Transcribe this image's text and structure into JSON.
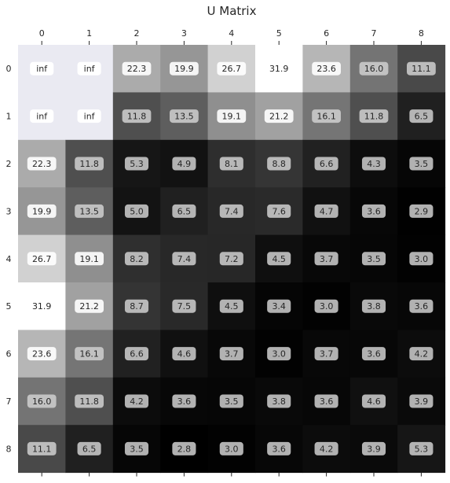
{
  "chart_data": {
    "type": "heatmap",
    "title": "U Matrix",
    "x_tick_labels": [
      "0",
      "1",
      "2",
      "3",
      "4",
      "5",
      "6",
      "7",
      "8"
    ],
    "y_tick_labels": [
      "0",
      "1",
      "2",
      "3",
      "4",
      "5",
      "6",
      "7",
      "8"
    ],
    "x_ticks_position": "top-and-bottom",
    "colormap": "gray",
    "missing_color": "#eaeaf2",
    "color_range": [
      2.8,
      31.9
    ],
    "values": [
      [
        "inf",
        "inf",
        22.3,
        19.9,
        26.7,
        31.9,
        23.6,
        16.0,
        11.1
      ],
      [
        "inf",
        "inf",
        11.8,
        13.5,
        19.1,
        21.2,
        16.1,
        11.8,
        6.5
      ],
      [
        22.3,
        11.8,
        5.3,
        4.9,
        8.1,
        8.8,
        6.6,
        4.3,
        3.5
      ],
      [
        19.9,
        13.5,
        5.0,
        6.5,
        7.4,
        7.6,
        4.7,
        3.6,
        2.9
      ],
      [
        26.7,
        19.1,
        8.2,
        7.4,
        7.2,
        4.5,
        3.7,
        3.5,
        3.0
      ],
      [
        31.9,
        21.2,
        8.7,
        7.5,
        4.5,
        3.4,
        3.0,
        3.8,
        3.6
      ],
      [
        23.6,
        16.1,
        6.6,
        4.6,
        3.7,
        3.0,
        3.7,
        3.6,
        4.2
      ],
      [
        16.0,
        11.8,
        4.2,
        3.6,
        3.5,
        3.8,
        3.6,
        4.6,
        3.9
      ],
      [
        11.1,
        6.5,
        3.5,
        2.8,
        3.0,
        3.6,
        4.2,
        3.9,
        5.3
      ]
    ]
  }
}
